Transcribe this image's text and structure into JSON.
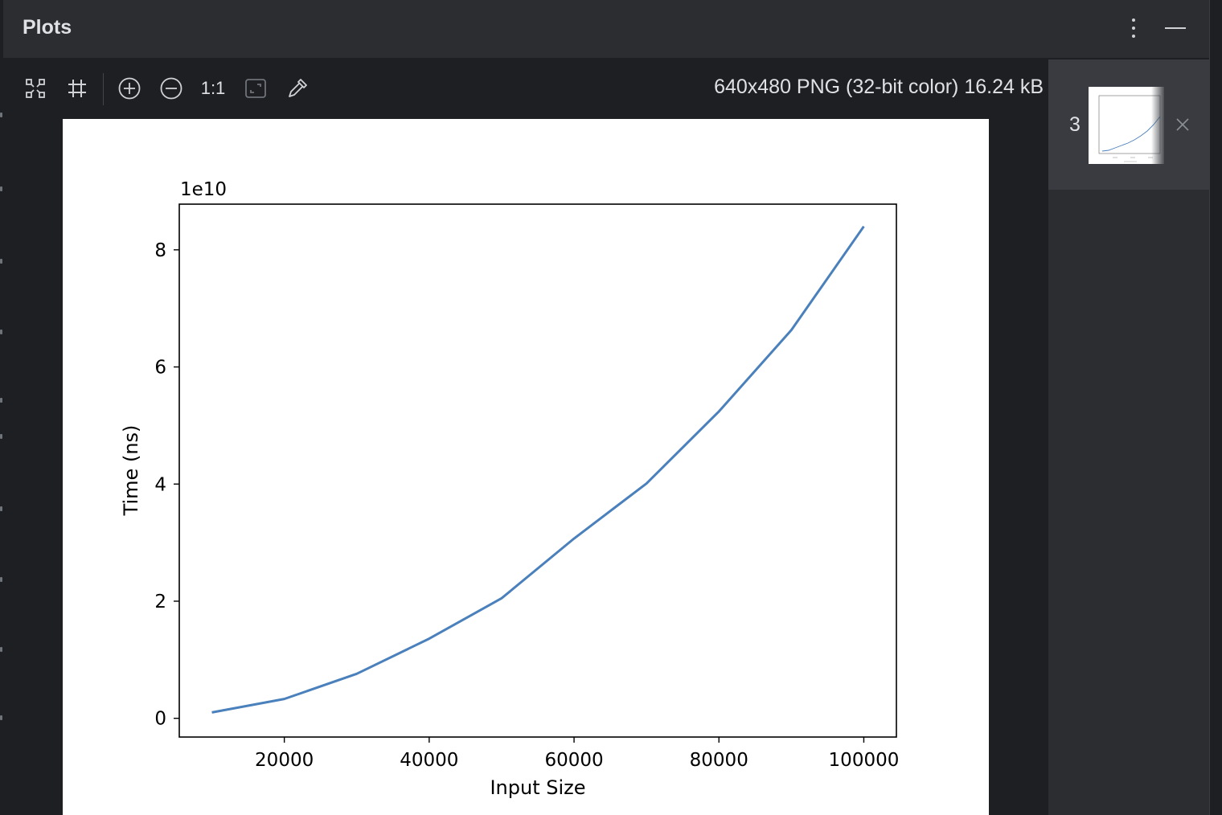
{
  "panel": {
    "title": "Plots"
  },
  "toolbar": {
    "fit_icon": "fit-content-icon",
    "grid_icon": "grid-icon",
    "zoom_in_icon": "zoom-in-icon",
    "zoom_out_icon": "zoom-out-icon",
    "actual_size_label": "1:1",
    "fit_window_icon": "fit-window-icon",
    "color_picker_icon": "color-picker-icon",
    "image_info": "640x480 PNG (32-bit color) 16.24 kB"
  },
  "thumbnails": [
    {
      "number": "3"
    }
  ],
  "colors": {
    "panel_bg": "#2b2d30",
    "toolbar_bg": "#1e1f22",
    "selected_thumb_bg": "#393b40",
    "series_color": "#4a80bb"
  },
  "chart_data": {
    "type": "line",
    "title": "",
    "xlabel": "Input Size",
    "ylabel": "Time (ns)",
    "y_offset_label": "1e10",
    "x": [
      10000,
      20000,
      30000,
      40000,
      50000,
      60000,
      70000,
      80000,
      90000,
      100000
    ],
    "series": [
      {
        "values": [
          0.1,
          0.33,
          0.76,
          1.36,
          2.05,
          3.07,
          4.01,
          5.24,
          6.63,
          8.4
        ]
      }
    ],
    "xlim": [
      5500,
      104500
    ],
    "ylim": [
      -0.32,
      8.78
    ],
    "xticks": [
      20000,
      40000,
      60000,
      80000,
      100000
    ],
    "xtick_labels": [
      "20000",
      "40000",
      "60000",
      "80000",
      "100000"
    ],
    "yticks": [
      0,
      2,
      4,
      6,
      8
    ],
    "ytick_labels": [
      "0",
      "2",
      "4",
      "6",
      "8"
    ],
    "grid": false,
    "legend": "none"
  }
}
